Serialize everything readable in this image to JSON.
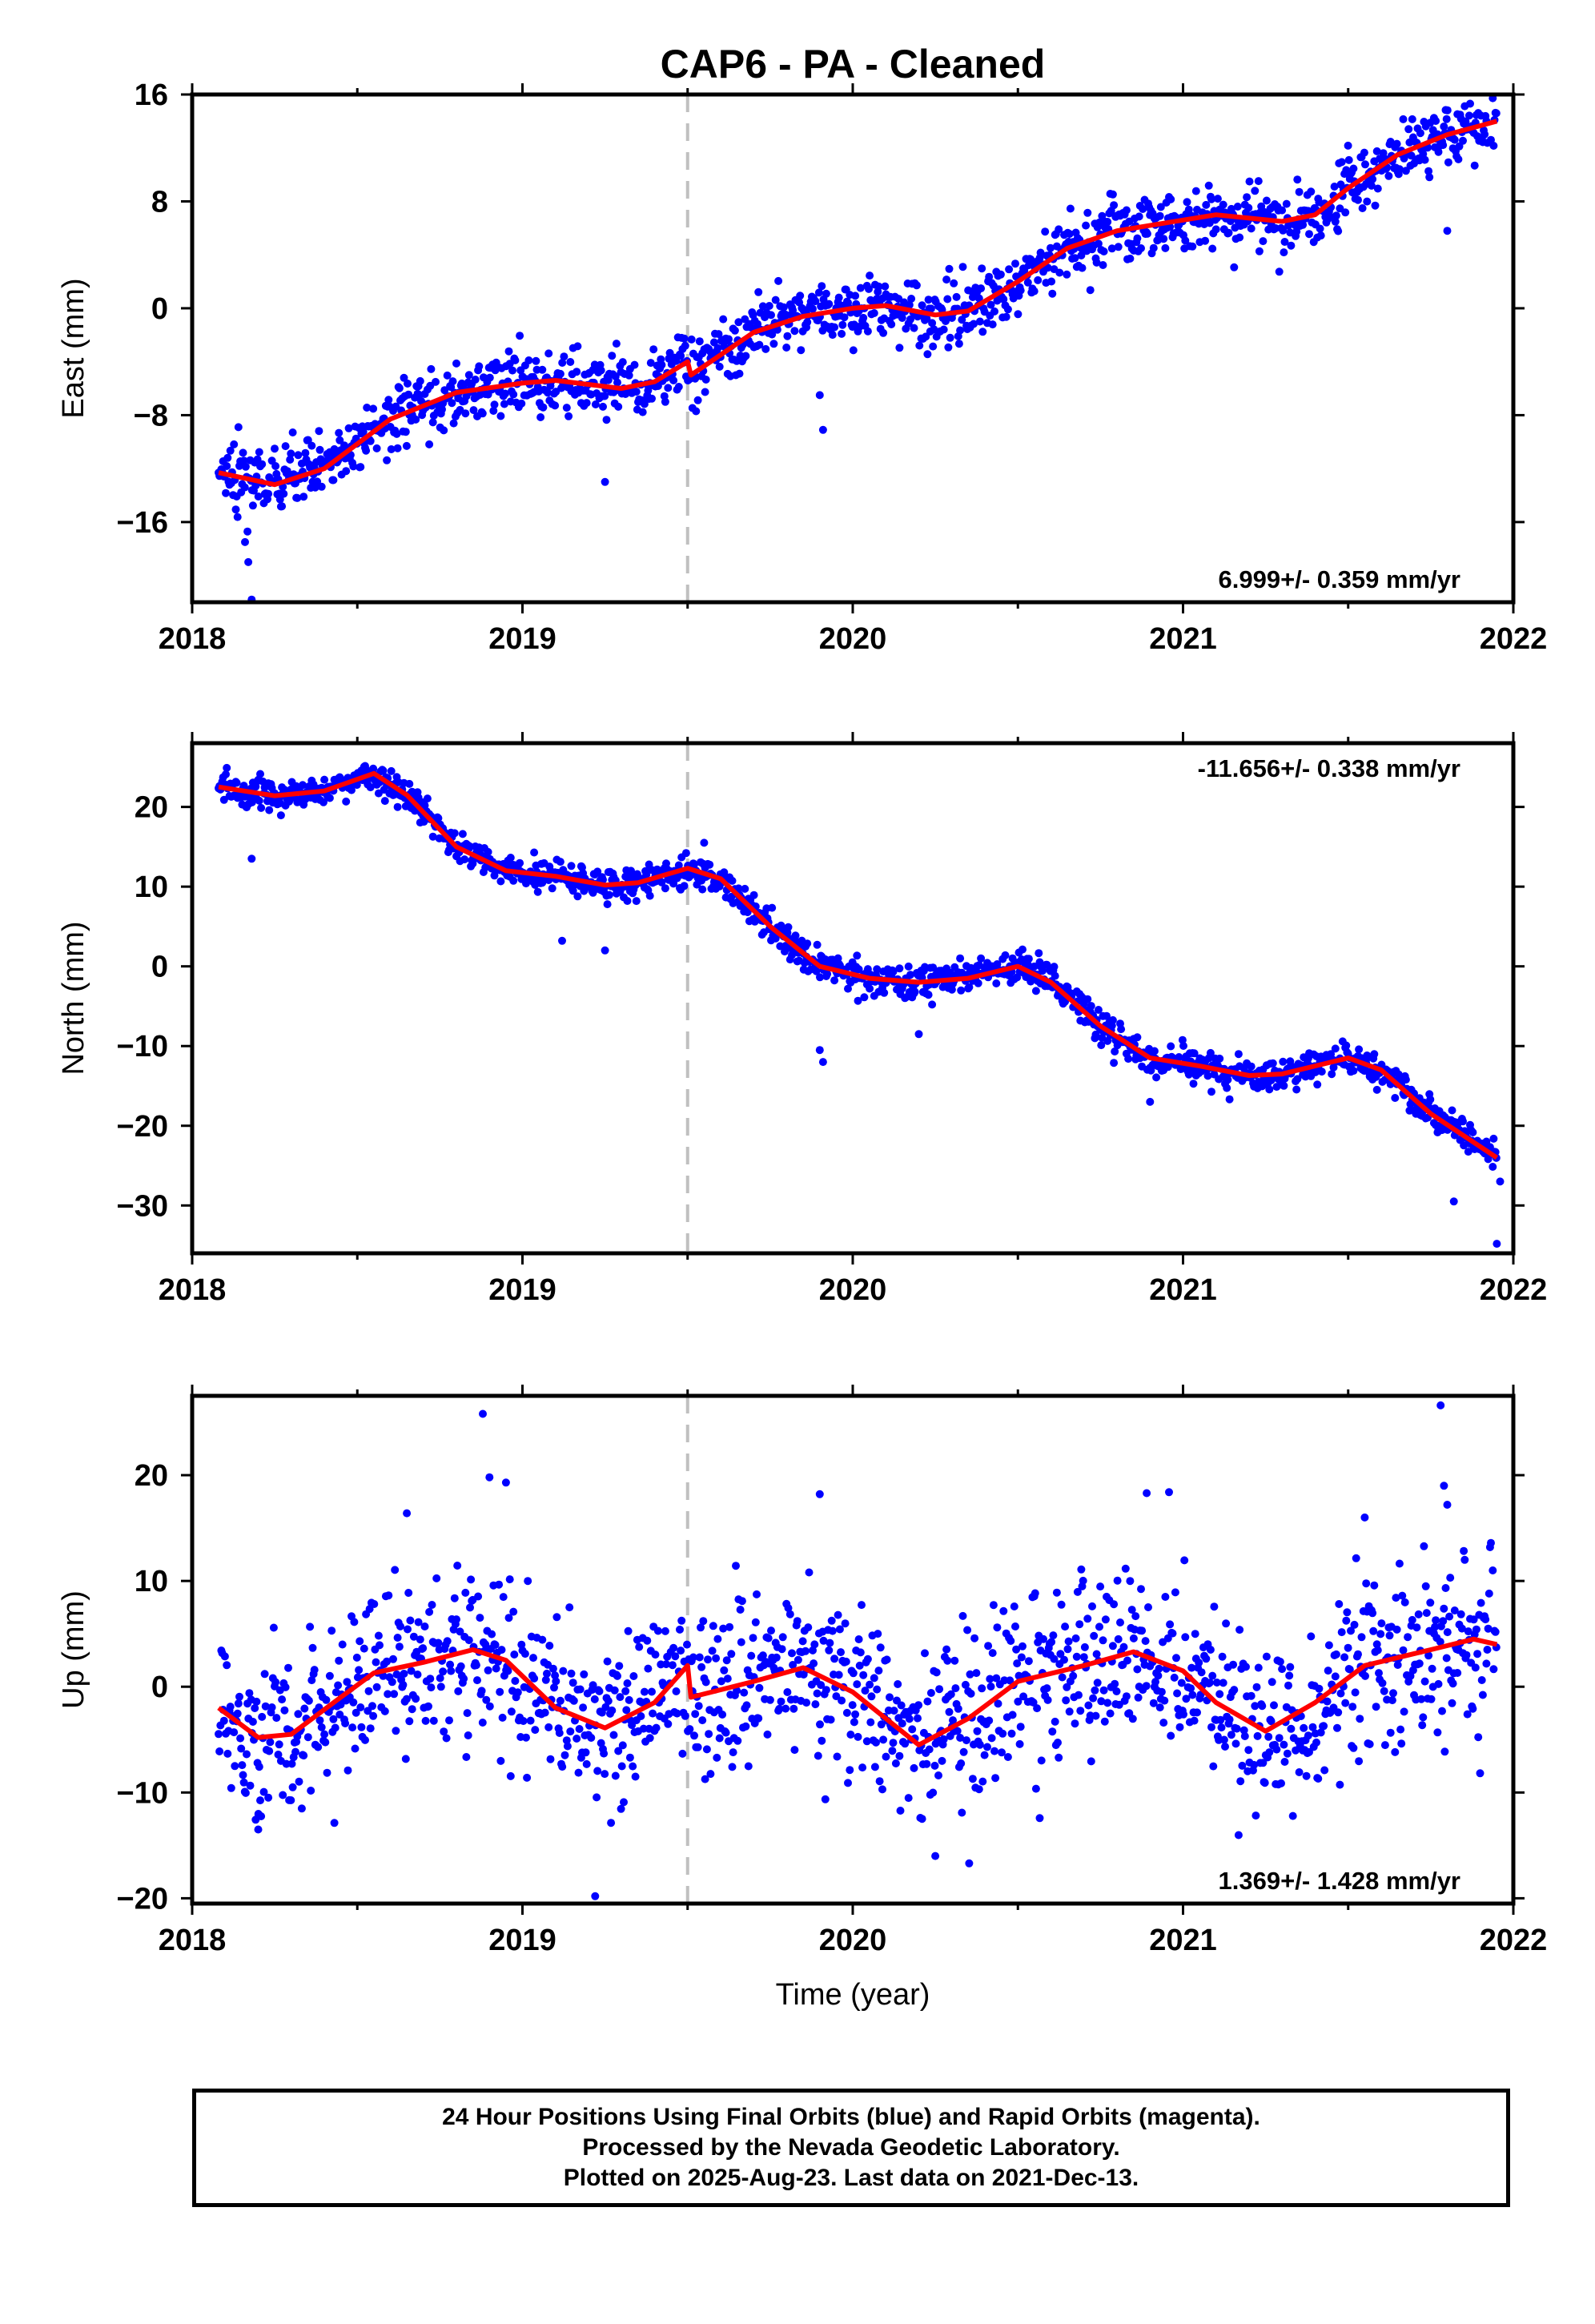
{
  "title": "CAP6  - PA - Cleaned",
  "xlabel": "Time (year)",
  "caption": {
    "line1": "24 Hour Positions Using Final Orbits (blue) and Rapid Orbits (magenta).",
    "line2": "Processed by the Nevada Geodetic Laboratory.",
    "line3": "Plotted on 2025-Aug-23. Last data on 2021-Dec-13."
  },
  "colors": {
    "points": "#0000ff",
    "fit": "#ff0000",
    "offset_line": "#c0c0c0"
  },
  "chart_data": [
    {
      "type": "scatter",
      "name": "east",
      "ylabel": "East (mm)",
      "rate_label": "6.999+/- 0.359 mm/yr",
      "rate_position": "bottom-right",
      "xlim": [
        2018,
        2022
      ],
      "ylim": [
        -22,
        16
      ],
      "yticks": [
        -16,
        -8,
        0,
        8,
        16
      ],
      "xticks": [
        2018,
        2019,
        2020,
        2021,
        2022
      ],
      "offset_epoch": 2019.5,
      "data_start": 2018.08,
      "data_end": 2021.95,
      "trend": {
        "at_start": -12.3,
        "at_end": 14.0
      },
      "fit_curve": [
        [
          2018.08,
          -12.3
        ],
        [
          2018.25,
          -13.2
        ],
        [
          2018.4,
          -12.0
        ],
        [
          2018.6,
          -8.3
        ],
        [
          2018.8,
          -6.3
        ],
        [
          2019.0,
          -5.6
        ],
        [
          2019.1,
          -5.4
        ],
        [
          2019.3,
          -6.0
        ],
        [
          2019.4,
          -5.5
        ],
        [
          2019.5,
          -4.0
        ],
        [
          2019.51,
          -5.0
        ],
        [
          2019.7,
          -1.8
        ],
        [
          2019.85,
          -0.6
        ],
        [
          2020.0,
          0.0
        ],
        [
          2020.1,
          0.2
        ],
        [
          2020.25,
          -0.5
        ],
        [
          2020.35,
          -0.2
        ],
        [
          2020.5,
          2.0
        ],
        [
          2020.65,
          4.5
        ],
        [
          2020.8,
          5.8
        ],
        [
          2021.0,
          6.6
        ],
        [
          2021.1,
          7.0
        ],
        [
          2021.3,
          6.5
        ],
        [
          2021.4,
          7.0
        ],
        [
          2021.5,
          9.0
        ],
        [
          2021.65,
          11.5
        ],
        [
          2021.8,
          13.0
        ],
        [
          2021.95,
          14.0
        ]
      ],
      "noise_sd": 1.2,
      "outliers": [
        [
          2018.17,
          -19.0
        ],
        [
          2018.18,
          -21.8
        ],
        [
          2018.16,
          -17.5
        ],
        [
          2018.14,
          -8.9
        ],
        [
          2019.25,
          -13.0
        ],
        [
          2019.9,
          -6.5
        ],
        [
          2019.91,
          -9.1
        ],
        [
          2021.8,
          5.8
        ]
      ]
    },
    {
      "type": "scatter",
      "name": "north",
      "ylabel": "North (mm)",
      "rate_label": "-11.656+/- 0.338 mm/yr",
      "rate_position": "top-right",
      "xlim": [
        2018,
        2022
      ],
      "ylim": [
        -36,
        28
      ],
      "yticks": [
        -30,
        -20,
        -10,
        0,
        10,
        20
      ],
      "xticks": [
        2018,
        2019,
        2020,
        2021,
        2022
      ],
      "offset_epoch": 2019.5,
      "data_start": 2018.08,
      "data_end": 2021.95,
      "trend": {
        "at_start": 22.5,
        "at_end": -24.0
      },
      "fit_curve": [
        [
          2018.08,
          22.5
        ],
        [
          2018.25,
          21.4
        ],
        [
          2018.4,
          22.0
        ],
        [
          2018.55,
          24.2
        ],
        [
          2018.65,
          21.5
        ],
        [
          2018.8,
          15.0
        ],
        [
          2018.95,
          12.0
        ],
        [
          2019.1,
          11.3
        ],
        [
          2019.25,
          10.2
        ],
        [
          2019.35,
          10.5
        ],
        [
          2019.5,
          12.3
        ],
        [
          2019.6,
          11.0
        ],
        [
          2019.75,
          5.0
        ],
        [
          2019.9,
          0.0
        ],
        [
          2020.05,
          -1.5
        ],
        [
          2020.2,
          -2.0
        ],
        [
          2020.35,
          -1.5
        ],
        [
          2020.5,
          0.0
        ],
        [
          2020.6,
          -2.0
        ],
        [
          2020.75,
          -7.5
        ],
        [
          2020.9,
          -11.5
        ],
        [
          2021.05,
          -12.5
        ],
        [
          2021.2,
          -13.7
        ],
        [
          2021.3,
          -13.5
        ],
        [
          2021.5,
          -11.5
        ],
        [
          2021.6,
          -13.0
        ],
        [
          2021.75,
          -18.5
        ],
        [
          2021.95,
          -24.0
        ]
      ],
      "noise_sd": 1.0,
      "outliers": [
        [
          2018.18,
          13.5
        ],
        [
          2019.12,
          3.2
        ],
        [
          2019.25,
          2.0
        ],
        [
          2019.9,
          -10.5
        ],
        [
          2019.91,
          -12.0
        ],
        [
          2020.2,
          -8.5
        ],
        [
          2020.9,
          -17.0
        ],
        [
          2021.82,
          -29.5
        ],
        [
          2021.95,
          -34.8
        ],
        [
          2021.96,
          -27.0
        ],
        [
          2019.55,
          15.5
        ]
      ]
    },
    {
      "type": "scatter",
      "name": "up",
      "ylabel": "Up (mm)",
      "rate_label": "1.369+/- 1.428 mm/yr",
      "rate_position": "bottom-right",
      "xlim": [
        2018,
        2022
      ],
      "ylim": [
        -20.5,
        27.5
      ],
      "yticks": [
        -20,
        -10,
        0,
        10,
        20
      ],
      "xticks": [
        2018,
        2019,
        2020,
        2021,
        2022
      ],
      "offset_epoch": 2019.5,
      "data_start": 2018.08,
      "data_end": 2021.95,
      "trend": {
        "at_start": -2.0,
        "at_end": 4.3
      },
      "fit_curve": [
        [
          2018.08,
          -2.0
        ],
        [
          2018.2,
          -4.8
        ],
        [
          2018.3,
          -4.5
        ],
        [
          2018.45,
          -1.0
        ],
        [
          2018.55,
          1.3
        ],
        [
          2018.7,
          2.3
        ],
        [
          2018.85,
          3.5
        ],
        [
          2018.95,
          2.5
        ],
        [
          2019.1,
          -2.0
        ],
        [
          2019.25,
          -3.9
        ],
        [
          2019.4,
          -1.5
        ],
        [
          2019.5,
          2.0
        ],
        [
          2019.51,
          -1.0
        ],
        [
          2019.7,
          0.5
        ],
        [
          2019.85,
          1.8
        ],
        [
          2020.0,
          -0.5
        ],
        [
          2020.2,
          -5.5
        ],
        [
          2020.35,
          -3.0
        ],
        [
          2020.5,
          0.5
        ],
        [
          2020.7,
          2.0
        ],
        [
          2020.85,
          3.3
        ],
        [
          2021.0,
          1.5
        ],
        [
          2021.1,
          -1.5
        ],
        [
          2021.25,
          -4.2
        ],
        [
          2021.4,
          -1.5
        ],
        [
          2021.55,
          2.0
        ],
        [
          2021.75,
          3.5
        ],
        [
          2021.88,
          4.5
        ],
        [
          2021.95,
          4.0
        ]
      ],
      "noise_sd": 4.0,
      "outliers": [
        [
          2018.88,
          25.8
        ],
        [
          2018.9,
          19.8
        ],
        [
          2018.95,
          19.3
        ],
        [
          2019.22,
          -19.8
        ],
        [
          2019.9,
          18.2
        ],
        [
          2020.89,
          18.3
        ],
        [
          2021.78,
          26.6
        ],
        [
          2021.79,
          19.0
        ],
        [
          2021.8,
          17.2
        ],
        [
          2021.55,
          16.0
        ],
        [
          2018.65,
          16.4
        ],
        [
          2018.2,
          -13.5
        ],
        [
          2020.25,
          -16.0
        ]
      ]
    }
  ]
}
